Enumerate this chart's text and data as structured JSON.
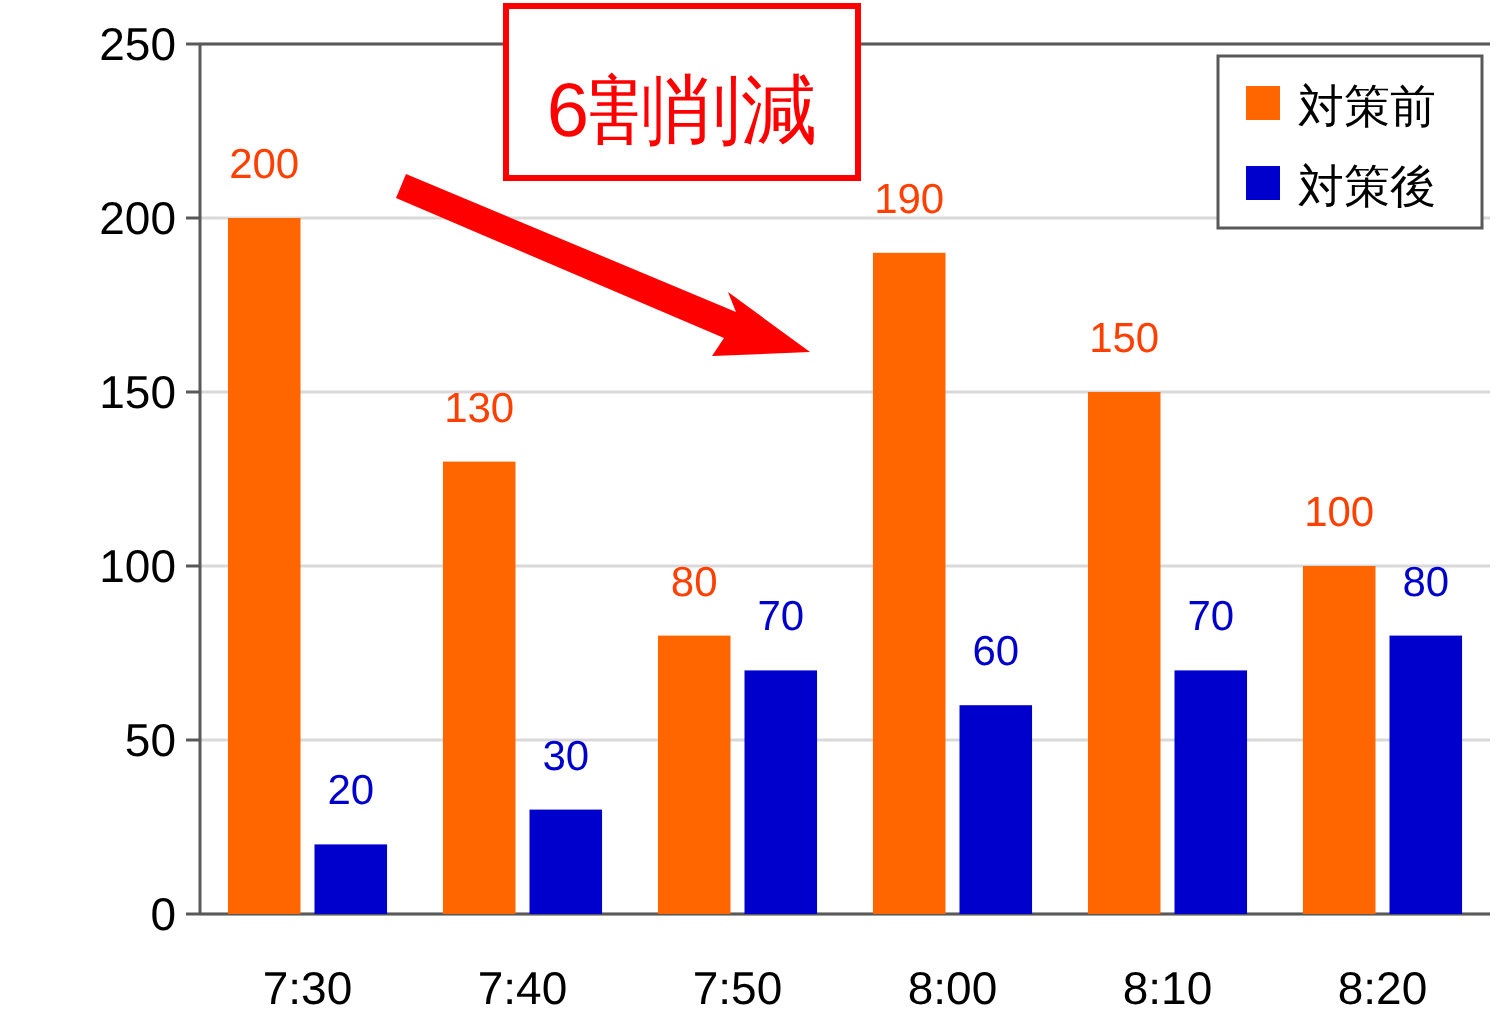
{
  "chart_data": {
    "type": "bar",
    "categories": [
      "7:30",
      "7:40",
      "7:50",
      "8:00",
      "8:10",
      "8:20"
    ],
    "series": [
      {
        "name": "対策前",
        "color": "#ff6600",
        "values": [
          200,
          130,
          80,
          190,
          150,
          100
        ]
      },
      {
        "name": "対策後",
        "color": "#0000cc",
        "values": [
          20,
          30,
          70,
          60,
          70,
          80
        ]
      }
    ],
    "ylim": [
      0,
      250
    ],
    "yticks": [
      0,
      50,
      100,
      150,
      200,
      250
    ],
    "grid": "y",
    "legend": "top right",
    "data_labels": true,
    "annotations": [
      "6割削減"
    ]
  }
}
